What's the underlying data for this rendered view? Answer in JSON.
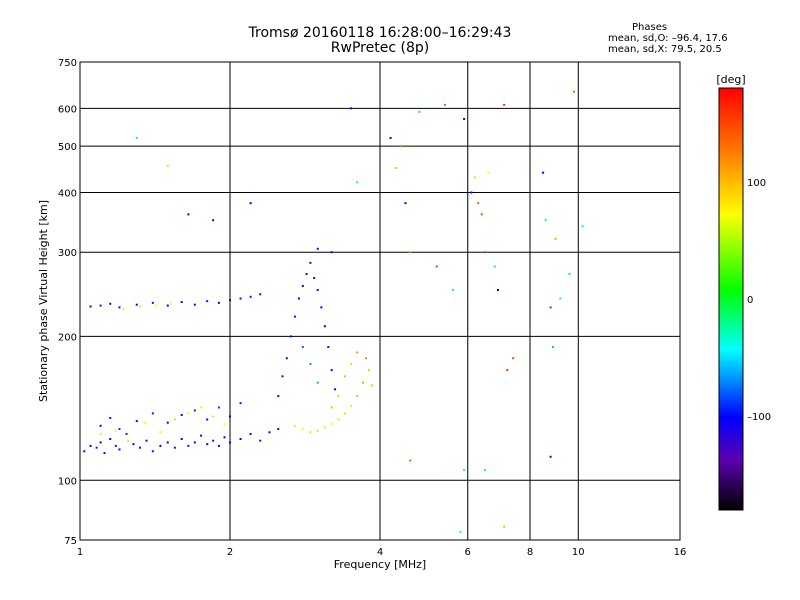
{
  "chart_data": {
    "type": "scatter",
    "title": "Tromsø 20160118 16:28:00–16:29:43",
    "subtitle": "RwPretec (8p)",
    "xlabel": "Frequency [MHz]",
    "ylabel": "Stationary phase Virtual Height [km]",
    "xscale": "log",
    "yscale": "log",
    "xlim": [
      1,
      16
    ],
    "ylim": [
      75,
      750
    ],
    "xticks": [
      1,
      2,
      4,
      6,
      8,
      10,
      16
    ],
    "xtick_labels": [
      "1",
      "2",
      "4",
      "6",
      "8",
      "10",
      "16"
    ],
    "yticks": [
      75,
      100,
      200,
      300,
      400,
      500,
      600,
      750
    ],
    "ytick_labels": [
      "75",
      "100",
      "200",
      "300",
      "400",
      "500",
      "600",
      "750"
    ],
    "grid": true,
    "colorbar": {
      "label": "[deg]",
      "range": [
        -180,
        180
      ],
      "ticks": [
        100,
        0,
        -100
      ],
      "tick_labels": [
        "100",
        "0",
        "–100"
      ]
    },
    "stats": {
      "title": "Phases",
      "o_line": "mean, sd,O: –96.4, 17.6",
      "x_line": "mean, sd,X:  79.5, 20.5"
    },
    "series": [
      {
        "type": "scatter",
        "points": [
          [
            1.02,
            115,
            -110
          ],
          [
            1.05,
            118,
            -100
          ],
          [
            1.08,
            117,
            -95
          ],
          [
            1.1,
            120,
            -105
          ],
          [
            1.12,
            114,
            -110
          ],
          [
            1.15,
            122,
            -100
          ],
          [
            1.18,
            118,
            -95
          ],
          [
            1.2,
            116,
            -110
          ],
          [
            1.24,
            125,
            -90
          ],
          [
            1.28,
            119,
            -105
          ],
          [
            1.32,
            117,
            -100
          ],
          [
            1.36,
            121,
            -110
          ],
          [
            1.4,
            115,
            -95
          ],
          [
            1.45,
            118,
            -100
          ],
          [
            1.5,
            120,
            -105
          ],
          [
            1.55,
            117,
            -110
          ],
          [
            1.6,
            122,
            -100
          ],
          [
            1.65,
            118,
            -95
          ],
          [
            1.7,
            120,
            -100
          ],
          [
            1.75,
            124,
            -110
          ],
          [
            1.8,
            119,
            -100
          ],
          [
            1.85,
            121,
            -95
          ],
          [
            1.9,
            118,
            -110
          ],
          [
            1.95,
            123,
            -100
          ],
          [
            2.0,
            120,
            -105
          ],
          [
            2.1,
            122,
            -100
          ],
          [
            2.2,
            125,
            -110
          ],
          [
            2.3,
            121,
            -95
          ],
          [
            2.4,
            126,
            -100
          ],
          [
            2.5,
            128,
            -105
          ],
          [
            1.1,
            130,
            -100
          ],
          [
            1.15,
            135,
            -95
          ],
          [
            1.2,
            128,
            -90
          ],
          [
            1.3,
            133,
            -100
          ],
          [
            1.4,
            138,
            -95
          ],
          [
            1.5,
            132,
            -100
          ],
          [
            1.6,
            137,
            -105
          ],
          [
            1.7,
            140,
            -95
          ],
          [
            1.8,
            134,
            -100
          ],
          [
            1.9,
            142,
            -90
          ],
          [
            2.0,
            136,
            -100
          ],
          [
            2.1,
            145,
            -95
          ],
          [
            1.1,
            125,
            80
          ],
          [
            1.18,
            127,
            75
          ],
          [
            1.25,
            121,
            85
          ],
          [
            1.35,
            132,
            70
          ],
          [
            1.45,
            126,
            80
          ],
          [
            1.55,
            134,
            90
          ],
          [
            1.65,
            138,
            75
          ],
          [
            1.75,
            142,
            80
          ],
          [
            1.85,
            136,
            85
          ],
          [
            1.95,
            131,
            70
          ],
          [
            1.05,
            231,
            -100
          ],
          [
            1.1,
            232,
            -95
          ],
          [
            1.15,
            234,
            -100
          ],
          [
            1.2,
            230,
            -110
          ],
          [
            1.3,
            233,
            -100
          ],
          [
            1.4,
            235,
            -95
          ],
          [
            1.5,
            232,
            -100
          ],
          [
            1.6,
            236,
            -105
          ],
          [
            1.7,
            233,
            -100
          ],
          [
            1.8,
            237,
            -95
          ],
          [
            1.9,
            235,
            -100
          ],
          [
            2.0,
            238,
            -105
          ],
          [
            2.1,
            240,
            -100
          ],
          [
            2.2,
            242,
            -95
          ],
          [
            2.3,
            245,
            -100
          ],
          [
            1.22,
            228,
            80
          ],
          [
            1.32,
            231,
            85
          ],
          [
            1.42,
            232,
            70
          ],
          [
            1.52,
            234,
            75
          ],
          [
            2.5,
            150,
            -100
          ],
          [
            2.55,
            165,
            -95
          ],
          [
            2.6,
            180,
            -110
          ],
          [
            2.65,
            200,
            -100
          ],
          [
            2.7,
            220,
            -95
          ],
          [
            2.75,
            240,
            -105
          ],
          [
            2.8,
            255,
            -100
          ],
          [
            2.85,
            270,
            -110
          ],
          [
            2.9,
            285,
            -100
          ],
          [
            2.95,
            265,
            -95
          ],
          [
            3.0,
            250,
            -100
          ],
          [
            3.05,
            230,
            -105
          ],
          [
            3.1,
            210,
            -100
          ],
          [
            3.15,
            190,
            -95
          ],
          [
            3.2,
            170,
            -100
          ],
          [
            3.25,
            155,
            -110
          ],
          [
            2.8,
            190,
            -80
          ],
          [
            2.9,
            175,
            -70
          ],
          [
            3.0,
            160,
            -60
          ],
          [
            2.7,
            130,
            80
          ],
          [
            2.8,
            128,
            75
          ],
          [
            2.9,
            126,
            85
          ],
          [
            3.0,
            127,
            90
          ],
          [
            3.1,
            129,
            80
          ],
          [
            3.2,
            131,
            75
          ],
          [
            3.3,
            134,
            85
          ],
          [
            3.4,
            138,
            90
          ],
          [
            3.5,
            143,
            80
          ],
          [
            3.6,
            150,
            100
          ],
          [
            3.7,
            160,
            110
          ],
          [
            3.8,
            170,
            95
          ],
          [
            3.85,
            158,
            100
          ],
          [
            3.75,
            180,
            120
          ],
          [
            3.6,
            185,
            115
          ],
          [
            3.5,
            175,
            90
          ],
          [
            3.4,
            165,
            105
          ],
          [
            3.3,
            150,
            95
          ],
          [
            3.2,
            142,
            100
          ],
          [
            1.3,
            520,
            -20
          ],
          [
            1.5,
            455,
            90
          ],
          [
            1.65,
            360,
            -100
          ],
          [
            1.85,
            350,
            -100
          ],
          [
            2.2,
            380,
            -100
          ],
          [
            3.0,
            305,
            -110
          ],
          [
            3.2,
            300,
            -100
          ],
          [
            3.5,
            600,
            -100
          ],
          [
            3.6,
            420,
            -30
          ],
          [
            4.2,
            520,
            -100
          ],
          [
            4.3,
            450,
            100
          ],
          [
            4.4,
            500,
            130
          ],
          [
            4.5,
            380,
            -100
          ],
          [
            4.6,
            300,
            120
          ],
          [
            4.8,
            590,
            -10
          ],
          [
            5.2,
            280,
            150
          ],
          [
            5.4,
            610,
            140
          ],
          [
            5.6,
            250,
            -20
          ],
          [
            5.9,
            570,
            -100
          ],
          [
            6.1,
            400,
            -100
          ],
          [
            6.2,
            430,
            90
          ],
          [
            6.3,
            380,
            140
          ],
          [
            6.4,
            360,
            150
          ],
          [
            6.5,
            300,
            160
          ],
          [
            6.6,
            440,
            70
          ],
          [
            6.8,
            280,
            -20
          ],
          [
            6.9,
            250,
            -100
          ],
          [
            7.1,
            610,
            160
          ],
          [
            7.2,
            170,
            160
          ],
          [
            7.4,
            180,
            150
          ],
          [
            8.5,
            440,
            -100
          ],
          [
            8.6,
            350,
            -20
          ],
          [
            8.8,
            230,
            -80
          ],
          [
            8.9,
            190,
            -60
          ],
          [
            9.0,
            320,
            110
          ],
          [
            9.2,
            240,
            -30
          ],
          [
            9.6,
            270,
            -10
          ],
          [
            9.8,
            650,
            140
          ],
          [
            10.2,
            340,
            -20
          ],
          [
            4.6,
            110,
            140
          ],
          [
            5.9,
            105,
            -20
          ],
          [
            6.5,
            105,
            -20
          ],
          [
            7.1,
            80,
            100
          ],
          [
            5.8,
            78,
            -30
          ],
          [
            8.8,
            112,
            -100
          ]
        ]
      }
    ]
  }
}
